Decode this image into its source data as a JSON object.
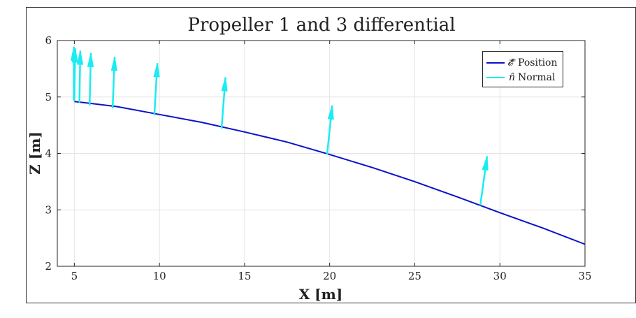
{
  "colors": {
    "position": "#0b12c8",
    "normal": "#19ecf2",
    "grid": "#e4e4e4",
    "axis": "#262626",
    "frame": "#333333"
  },
  "chart_data": {
    "type": "line",
    "title": "Propeller 1 and 3 differential",
    "xlabel": "X [m]",
    "ylabel": "Z [m]",
    "xlim": [
      4,
      35
    ],
    "ylim": [
      2,
      6
    ],
    "xticks": [
      5,
      10,
      15,
      20,
      25,
      30,
      35
    ],
    "yticks": [
      2,
      3,
      4,
      5,
      6
    ],
    "grid": true,
    "legend_position": "top-right",
    "series": [
      {
        "name": "Position",
        "legend_symbol": "𝓔⃗",
        "kind": "line",
        "x": [
          5,
          7.5,
          10,
          12.5,
          15,
          17.5,
          20,
          22.5,
          25,
          27.5,
          30,
          32.5,
          35
        ],
        "y": [
          4.92,
          4.83,
          4.69,
          4.55,
          4.38,
          4.2,
          3.98,
          3.75,
          3.5,
          3.23,
          2.95,
          2.68,
          2.39
        ]
      },
      {
        "name": "Normal",
        "legend_symbol": "n̂",
        "kind": "quiver",
        "x": [
          4.97,
          5.0,
          5.3,
          5.9,
          7.25,
          9.7,
          13.65,
          19.85,
          28.85
        ],
        "y": [
          4.94,
          4.93,
          4.9,
          4.85,
          4.8,
          4.68,
          4.44,
          3.98,
          3.08
        ],
        "dx": [
          0.0,
          0.05,
          0.05,
          0.07,
          0.12,
          0.18,
          0.23,
          0.3,
          0.4
        ],
        "dy": [
          0.95,
          0.93,
          0.92,
          0.93,
          0.91,
          0.92,
          0.91,
          0.87,
          0.87
        ]
      }
    ]
  }
}
